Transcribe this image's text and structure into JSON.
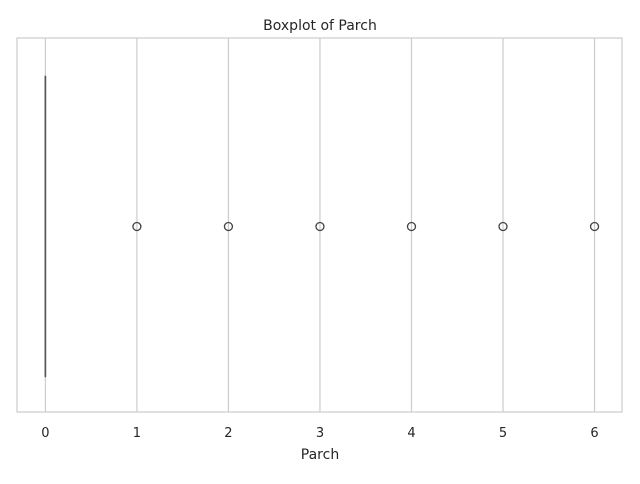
{
  "chart_data": {
    "type": "box",
    "orientation": "horizontal",
    "title": "Boxplot of Parch",
    "xlabel": "Parch",
    "ylabel": "",
    "xlim": [
      -0.31,
      6.3
    ],
    "xticks": [
      0,
      1,
      2,
      3,
      4,
      5,
      6
    ],
    "grid": {
      "x": true,
      "y": false
    },
    "box": {
      "min": 0,
      "q1": 0,
      "median": 0,
      "q3": 0,
      "max": 0
    },
    "outliers": [
      1,
      2,
      3,
      4,
      5,
      6
    ],
    "colors": {
      "axes_edge": "#cccccc",
      "grid": "#cccccc",
      "whisker": "#555555",
      "outlier_edge": "#444444",
      "text": "#262626"
    }
  }
}
